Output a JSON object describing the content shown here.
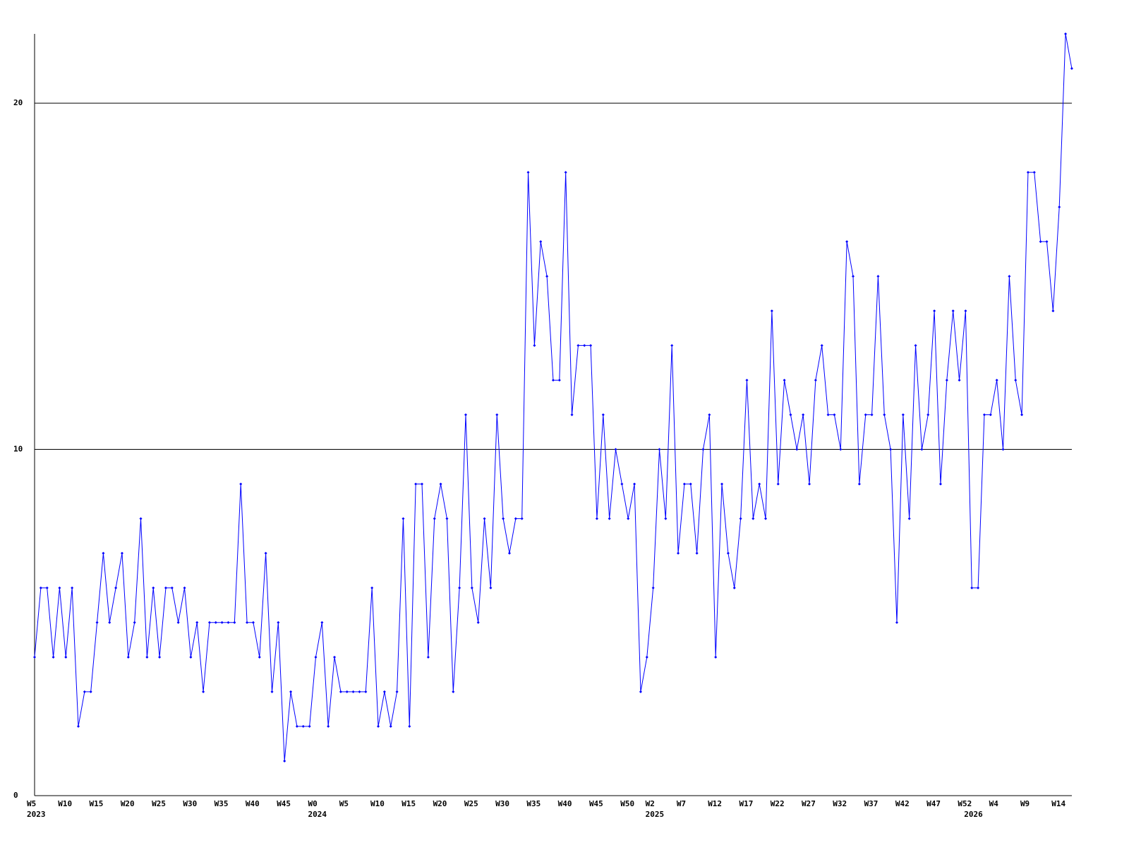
{
  "chart_data": {
    "type": "line",
    "color": "#0000ff",
    "grid": true,
    "ylim": [
      0,
      22
    ],
    "yticks": [
      0,
      10,
      20
    ],
    "categories": [
      "W5",
      null,
      null,
      null,
      null,
      "W10",
      null,
      null,
      null,
      null,
      "W15",
      null,
      null,
      null,
      null,
      "W20",
      null,
      null,
      null,
      null,
      "W25",
      null,
      null,
      null,
      null,
      "W30",
      null,
      null,
      null,
      null,
      "W35",
      null,
      null,
      null,
      null,
      "W40",
      null,
      null,
      null,
      null,
      "W45",
      null,
      null,
      null,
      null,
      "W0",
      null,
      null,
      null,
      null,
      "W5",
      null,
      null,
      null,
      null,
      "W10",
      null,
      null,
      null,
      null,
      "W15",
      null,
      null,
      null,
      null,
      "W20",
      null,
      null,
      null,
      null,
      "W25",
      null,
      null,
      null,
      null,
      "W30",
      null,
      null,
      null,
      null,
      "W35",
      null,
      null,
      null,
      null,
      "W40",
      null,
      null,
      null,
      null,
      "W45",
      null,
      null,
      null,
      null,
      "W50",
      null,
      null,
      null,
      "W2",
      null,
      null,
      null,
      null,
      "W7",
      null,
      null,
      null,
      null,
      "W12",
      null,
      null,
      null,
      null,
      "W17",
      null,
      null,
      null,
      null,
      "W22",
      null,
      null,
      null,
      null,
      "W27",
      null,
      null,
      null,
      null,
      "W32",
      null,
      null,
      null,
      null,
      "W37",
      null,
      null,
      null,
      null,
      "W42",
      null,
      null,
      null,
      null,
      "W47",
      null,
      null,
      null,
      null,
      "W52",
      null,
      null,
      null,
      null,
      "W4",
      null,
      null,
      null,
      null,
      "W9",
      null,
      null,
      null,
      null,
      "W14",
      null,
      null
    ],
    "years": [
      "2023",
      null,
      null,
      null,
      null,
      null,
      null,
      null,
      null,
      null,
      null,
      null,
      null,
      null,
      null,
      null,
      null,
      null,
      null,
      null,
      null,
      null,
      null,
      null,
      null,
      null,
      null,
      null,
      null,
      null,
      null,
      null,
      null,
      null,
      null,
      null,
      null,
      null,
      null,
      null,
      null,
      null,
      null,
      null,
      null,
      "2024",
      null,
      null,
      null,
      null,
      null,
      null,
      null,
      null,
      null,
      null,
      null,
      null,
      null,
      null,
      null,
      null,
      null,
      null,
      null,
      null,
      null,
      null,
      null,
      null,
      null,
      null,
      null,
      null,
      null,
      null,
      null,
      null,
      null,
      null,
      null,
      null,
      null,
      null,
      null,
      null,
      null,
      null,
      null,
      null,
      null,
      null,
      null,
      null,
      null,
      null,
      null,
      null,
      null,
      "2025",
      null,
      null,
      null,
      null,
      null,
      null,
      null,
      null,
      null,
      null,
      null,
      null,
      null,
      null,
      null,
      null,
      null,
      null,
      null,
      null,
      null,
      null,
      null,
      null,
      null,
      null,
      null,
      null,
      null,
      null,
      null,
      null,
      null,
      null,
      null,
      null,
      null,
      null,
      null,
      null,
      null,
      null,
      null,
      null,
      null,
      null,
      null,
      null,
      null,
      null,
      "2026",
      null,
      null,
      null,
      null,
      null,
      null,
      null,
      null,
      null,
      null,
      null,
      null,
      null,
      null,
      null,
      null
    ],
    "values": [
      4,
      6,
      6,
      4,
      6,
      4,
      6,
      2,
      3,
      3,
      5,
      7,
      5,
      6,
      7,
      4,
      5,
      8,
      4,
      6,
      4,
      6,
      6,
      5,
      6,
      4,
      5,
      3,
      5,
      5,
      5,
      5,
      5,
      9,
      5,
      5,
      4,
      7,
      3,
      5,
      1,
      3,
      2,
      2,
      2,
      4,
      5,
      2,
      4,
      3,
      3,
      3,
      3,
      3,
      6,
      2,
      3,
      2,
      3,
      8,
      2,
      9,
      9,
      4,
      8,
      9,
      8,
      3,
      6,
      11,
      6,
      5,
      8,
      6,
      11,
      8,
      7,
      8,
      8,
      18,
      13,
      16,
      15,
      12,
      12,
      18,
      11,
      13,
      13,
      13,
      8,
      11,
      8,
      10,
      9,
      8,
      9,
      3,
      4,
      6,
      10,
      8,
      13,
      7,
      9,
      9,
      7,
      10,
      11,
      4,
      9,
      7,
      6,
      8,
      12,
      8,
      9,
      8,
      14,
      9,
      12,
      11,
      10,
      11,
      9,
      12,
      13,
      11,
      11,
      10,
      16,
      15,
      9,
      11,
      11,
      15,
      11,
      10,
      5,
      11,
      8,
      13,
      10,
      11,
      14,
      9,
      12,
      14,
      12,
      14,
      6,
      6,
      11,
      11,
      12,
      10,
      15,
      12,
      11,
      18,
      18,
      16,
      16,
      14,
      17,
      22,
      21
    ]
  }
}
